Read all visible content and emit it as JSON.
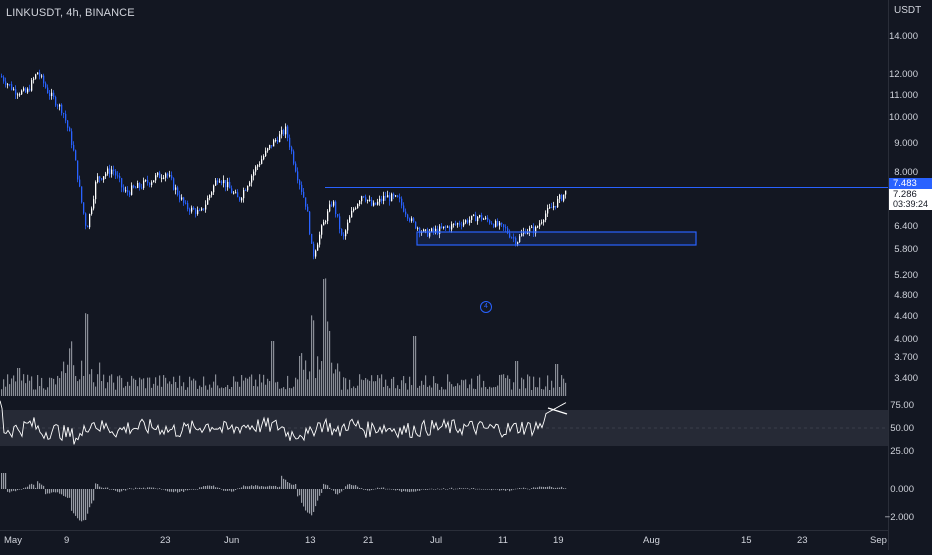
{
  "header": {
    "symbol_title": "LINKUSDT, 4h, BINANCE",
    "currency": "USDT"
  },
  "colors": {
    "background": "#131722",
    "text": "#d1d4dc",
    "accent_blue": "#2962ff",
    "candle_up": "#ffffff",
    "candle_down": "#2962ff",
    "volume": "#b2b5be",
    "rsi_band": "#2a2e39"
  },
  "price_axis": {
    "labels": [
      "14.000",
      "12.000",
      "11.000",
      "10.000",
      "9.000",
      "8.000",
      "7.000",
      "6.400",
      "5.800",
      "5.200",
      "4.800",
      "4.400",
      "4.000",
      "3.700",
      "3.400"
    ],
    "price_tag": "7.483",
    "last_price": "7.286",
    "countdown": "03:39:24"
  },
  "indicator_axis": {
    "rsi_labels": [
      "75.00",
      "50.00",
      "25.00"
    ],
    "macd_labels": [
      "0.000",
      "−2.000"
    ]
  },
  "time_axis": {
    "labels": [
      "May",
      "9",
      "23",
      "Jun",
      "13",
      "21",
      "Jul",
      "11",
      "19",
      "Aug",
      "15",
      "23",
      "Sep"
    ]
  },
  "annotations": {
    "marker_label": "4"
  },
  "chart_data": {
    "type": "line",
    "series": [
      {
        "x": [
          "May",
          "May",
          "9",
          "9",
          "9",
          "23",
          "23",
          "Jun",
          "Jun",
          "Jun",
          "13",
          "13",
          "13",
          "21",
          "21",
          "Jul",
          "Jul",
          "Jul",
          "11",
          "11",
          "19",
          "19"
        ],
        "values": [
          12.0,
          11.5,
          11.0,
          9.0,
          7.2,
          7.6,
          7.1,
          7.3,
          7.6,
          9.3,
          7.0,
          5.6,
          7.2,
          7.1,
          7.2,
          6.5,
          6.2,
          6.3,
          6.6,
          6.1,
          6.5,
          7.3
        ]
      }
    ],
    "xlabel": "",
    "ylabel": "",
    "ylim": [
      3.4,
      14.0
    ],
    "grid": false,
    "resistance_level": 7.483,
    "support_zone": [
      5.9,
      6.2
    ],
    "rsi_range": [
      25,
      75
    ],
    "macd_range": [
      -2,
      0.5
    ]
  }
}
